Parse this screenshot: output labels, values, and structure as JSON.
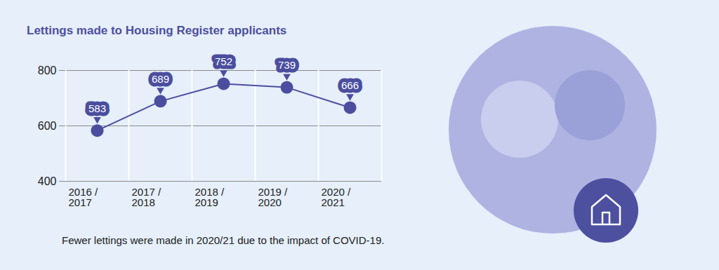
{
  "chart_data": {
    "type": "line",
    "title": "Lettings made to Housing Register applicants",
    "categories": [
      "2016 /\n2017",
      "2017 /\n2018",
      "2018 /\n2019",
      "2019 /\n2020",
      "2020 /\n2021"
    ],
    "values": [
      583,
      689,
      752,
      739,
      666
    ],
    "color": "#4b4e9e",
    "ylim": [
      400,
      800
    ],
    "yticks": [
      400,
      600,
      800
    ],
    "grid": true,
    "data_labels": true,
    "marker": "circle",
    "caption": "Fewer lettings were made in 2020/21 due to the impact of COVID-19."
  }
}
